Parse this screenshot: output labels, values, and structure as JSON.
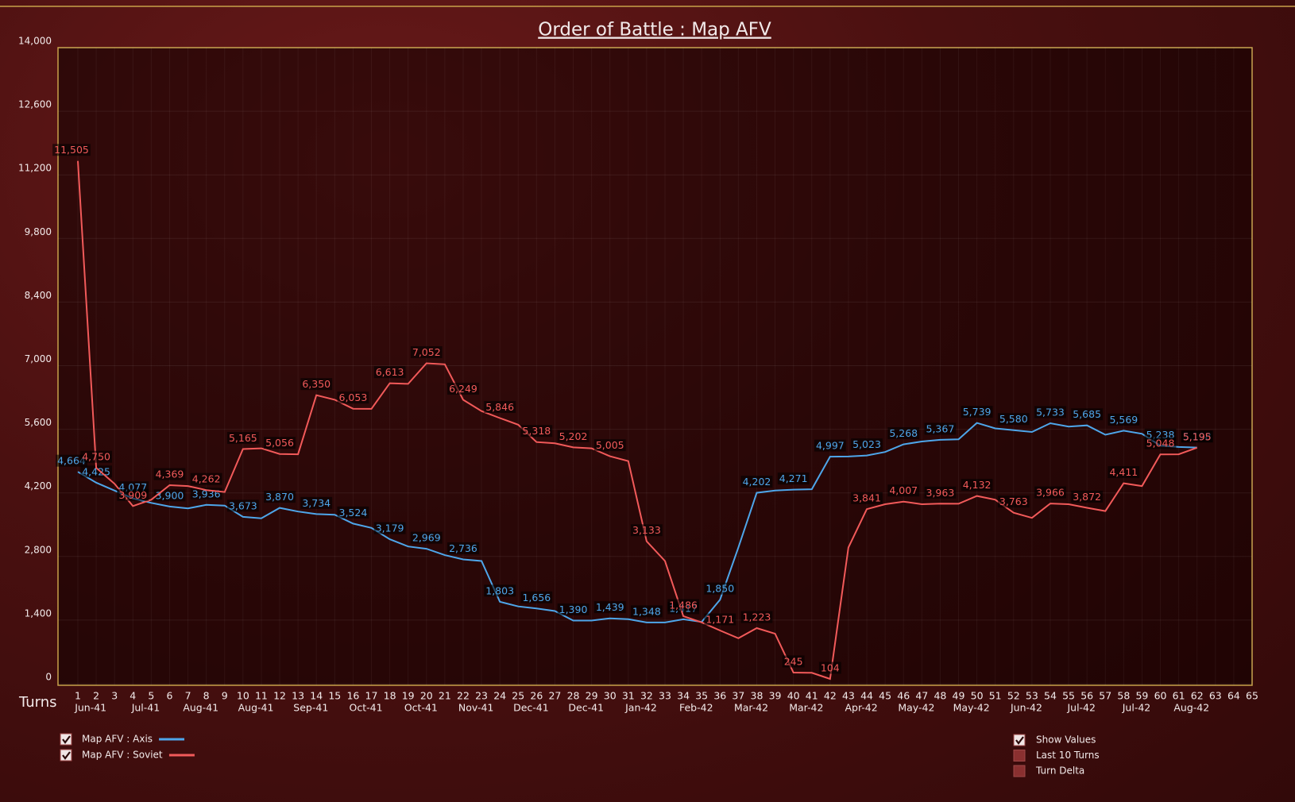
{
  "chart_data": {
    "type": "line",
    "title": "Order of Battle : Map AFV",
    "x_axis_label": "Turns",
    "categories": [
      1,
      2,
      3,
      4,
      5,
      6,
      7,
      8,
      9,
      10,
      11,
      12,
      13,
      14,
      15,
      16,
      17,
      18,
      19,
      20,
      21,
      22,
      23,
      24,
      25,
      26,
      27,
      28,
      29,
      30,
      31,
      32,
      33,
      34,
      35,
      36,
      37,
      38,
      39,
      40,
      41,
      42,
      43,
      44,
      45,
      46,
      47,
      48,
      49,
      50,
      51,
      52,
      53,
      54,
      55,
      56,
      57,
      58,
      59,
      60,
      61,
      62,
      63,
      64,
      65
    ],
    "month_labels": [
      null,
      "Jun-41",
      null,
      null,
      "Jul-41",
      null,
      null,
      "Aug-41",
      null,
      null,
      "Aug-41",
      null,
      null,
      "Sep-41",
      null,
      null,
      "Oct-41",
      null,
      null,
      "Oct-41",
      null,
      null,
      "Nov-41",
      null,
      null,
      "Dec-41",
      null,
      null,
      "Dec-41",
      null,
      null,
      "Jan-42",
      null,
      null,
      "Feb-42",
      null,
      null,
      "Mar-42",
      null,
      null,
      "Mar-42",
      null,
      null,
      "Apr-42",
      null,
      null,
      "May-42",
      null,
      null,
      "May-42",
      null,
      null,
      "Jun-42",
      null,
      null,
      "Jul-42",
      null,
      null,
      "Jul-42",
      null,
      null,
      "Aug-42",
      null,
      null,
      null
    ],
    "series": [
      {
        "name": "Map AFV : Axis",
        "color": "#4ea6ea",
        "checked": true,
        "values": [
          4664,
          4425,
          4250,
          4077,
          3980,
          3900,
          3860,
          3936,
          3920,
          3673,
          3640,
          3870,
          3790,
          3734,
          3720,
          3524,
          3430,
          3179,
          3020,
          2969,
          2830,
          2736,
          2700,
          1803,
          1700,
          1656,
          1600,
          1390,
          1390,
          1439,
          1420,
          1348,
          1348,
          1417,
          1360,
          1850,
          3000,
          4202,
          4250,
          4271,
          4280,
          4997,
          5000,
          5023,
          5100,
          5268,
          5330,
          5367,
          5380,
          5739,
          5620,
          5580,
          5540,
          5733,
          5660,
          5685,
          5480,
          5569,
          5500,
          5238,
          5210,
          5198,
          null,
          null,
          null
        ],
        "value_labels": [
          "4,664",
          "4,425",
          null,
          "4,077",
          null,
          "3,900",
          null,
          "3,936",
          null,
          "3,673",
          null,
          "3,870",
          null,
          "3,734",
          null,
          "3,524",
          null,
          "3,179",
          null,
          "2,969",
          null,
          "2,736",
          null,
          "1,803",
          null,
          "1,656",
          null,
          "1,390",
          null,
          "1,439",
          null,
          "1,348",
          null,
          "1,417",
          null,
          "1,850",
          null,
          "4,202",
          null,
          "4,271",
          null,
          "4,997",
          null,
          "5,023",
          null,
          "5,268",
          null,
          "5,367",
          null,
          "5,739",
          null,
          "5,580",
          null,
          "5,733",
          null,
          "5,685",
          null,
          "5,569",
          null,
          "5,238",
          null,
          "5,198",
          null,
          null,
          null
        ]
      },
      {
        "name": "Map AFV : Soviet",
        "color": "#f25a5a",
        "checked": true,
        "values": [
          11505,
          4750,
          4400,
          3909,
          4050,
          4369,
          4350,
          4262,
          4220,
          5165,
          5180,
          5056,
          5050,
          6350,
          6250,
          6053,
          6050,
          6613,
          6600,
          7052,
          7030,
          6249,
          6000,
          5846,
          5700,
          5318,
          5290,
          5202,
          5180,
          5005,
          4900,
          3133,
          2700,
          1486,
          1350,
          1171,
          1000,
          1223,
          1100,
          245,
          240,
          104,
          3000,
          3841,
          3950,
          4007,
          3950,
          3963,
          3960,
          4132,
          4050,
          3763,
          3650,
          3966,
          3950,
          3872,
          3800,
          4411,
          4350,
          5048,
          5050,
          5195,
          null,
          null,
          null
        ],
        "value_labels": [
          "11,505",
          "4,750",
          null,
          "3,909",
          null,
          "4,369",
          null,
          "4,262",
          null,
          "5,165",
          null,
          "5,056",
          null,
          "6,350",
          null,
          "6,053",
          null,
          "6,613",
          null,
          "7,052",
          null,
          "6,249",
          null,
          "5,846",
          null,
          "5,318",
          null,
          "5,202",
          null,
          "5,005",
          null,
          "3,133",
          null,
          "1,486",
          null,
          "1,171",
          null,
          "1,223",
          null,
          "245",
          null,
          "104",
          null,
          "3,841",
          null,
          "4,007",
          null,
          "3,963",
          null,
          "4,132",
          null,
          "3,763",
          null,
          "3,966",
          null,
          "3,872",
          null,
          "4,411",
          null,
          "5,048",
          null,
          "5,195",
          null,
          null,
          null
        ]
      }
    ],
    "ylim": [
      0,
      14000
    ],
    "yticks": [
      0,
      {
        "value": 1400,
        "label": "1,400"
      },
      {
        "value": 2800,
        "label": "2,800"
      },
      {
        "value": 4200,
        "label": "4,200"
      },
      {
        "value": 5600,
        "label": "5,600"
      },
      {
        "value": 7000,
        "label": "7,000"
      },
      {
        "value": 8400,
        "label": "8,400"
      },
      {
        "value": 9800,
        "label": "9,800"
      },
      {
        "value": 11200,
        "label": "11,200"
      },
      {
        "value": 12600,
        "label": "12,600"
      },
      {
        "value": 14000,
        "label": "14,000"
      }
    ],
    "grid": true,
    "options": [
      {
        "label": "Show Values",
        "checked": true
      },
      {
        "label": "Last 10 Turns",
        "checked": false
      },
      {
        "label": "Turn Delta",
        "checked": false
      }
    ]
  }
}
